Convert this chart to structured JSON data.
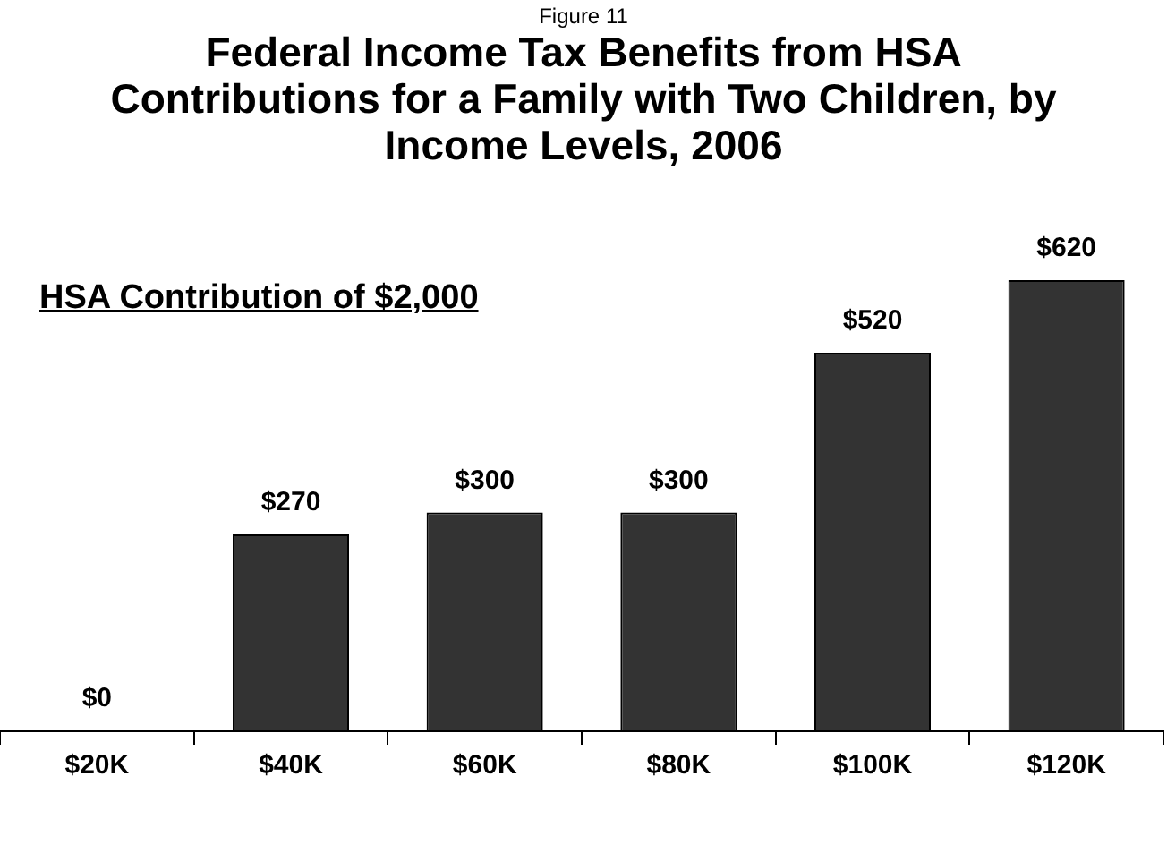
{
  "chart_data": {
    "type": "bar",
    "title": "Federal Income Tax Benefits from HSA Contributions for a Family with Two Children, by Income Levels, 2006",
    "annotations": [
      "Figure 11",
      "HSA Contribution of $2,000"
    ],
    "categories": [
      "$20K",
      "$40K",
      "$60K",
      "$80K",
      "$100K",
      "$120K"
    ],
    "values": [
      0,
      270,
      300,
      300,
      520,
      620
    ],
    "value_labels": [
      "$0",
      "$270",
      "$300",
      "$300",
      "$520",
      "$620"
    ],
    "color": "#333333",
    "grid": false,
    "legend": false
  }
}
